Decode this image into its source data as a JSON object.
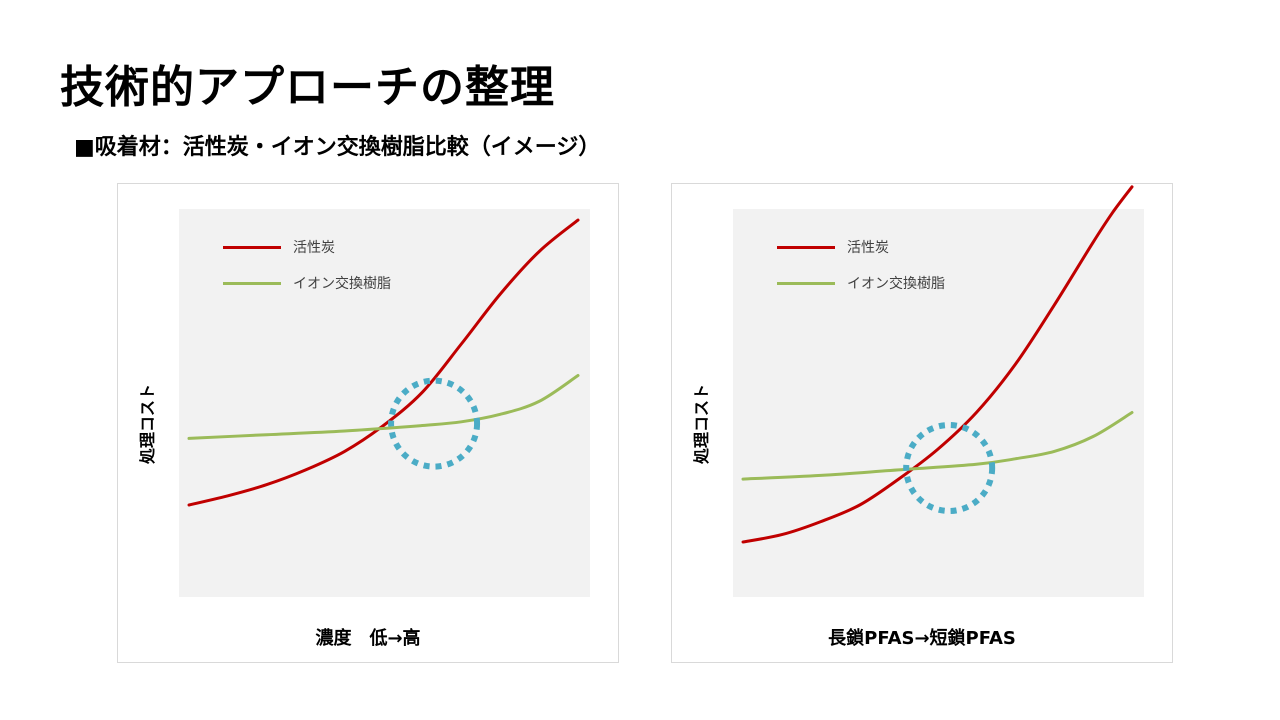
{
  "page": {
    "title": "技術的アプローチの整理",
    "subtitle": "■吸着材：活性炭・イオン交換樹脂比較（イメージ）"
  },
  "colors": {
    "activated_carbon": "#c00000",
    "ion_exchange": "#9bbb59",
    "highlight": "#4bacc6",
    "plot_bg": "#f2f2f2"
  },
  "chart_data": [
    {
      "type": "line",
      "title": "",
      "xlabel": "濃度　低→高",
      "ylabel": "処理コスト",
      "xlim": [
        0,
        100
      ],
      "ylim": [
        0,
        100
      ],
      "grid": false,
      "legend_position": "top-left",
      "series": [
        {
          "name": "活性炭",
          "color": "#c00000",
          "x": [
            0,
            10,
            20,
            30,
            40,
            50,
            60,
            70,
            80,
            90,
            100
          ],
          "y": [
            20,
            22.5,
            25.5,
            29.5,
            34.5,
            41.5,
            50.5,
            63.5,
            77,
            88.5,
            97
          ]
        },
        {
          "name": "イオン交換樹脂",
          "color": "#9bbb59",
          "x": [
            0,
            20,
            40,
            60,
            70,
            80,
            90,
            100
          ],
          "y": [
            38,
            39,
            40,
            41.5,
            42.5,
            44.5,
            48,
            55
          ]
        }
      ],
      "annotations": [
        {
          "type": "dashed-circle",
          "label": "crossover",
          "x": 63,
          "y": 42,
          "color": "#4bacc6"
        }
      ]
    },
    {
      "type": "line",
      "title": "",
      "xlabel": "長鎖PFAS→短鎖PFAS",
      "ylabel": "処理コスト",
      "xlim": [
        0,
        100
      ],
      "ylim": [
        0,
        100
      ],
      "grid": false,
      "legend_position": "top-left",
      "series": [
        {
          "name": "活性炭",
          "color": "#c00000",
          "x": [
            0,
            10,
            20,
            30,
            40,
            50,
            60,
            70,
            80,
            90,
            95,
            100
          ],
          "y": [
            10,
            12,
            15.5,
            20,
            27,
            35,
            45,
            58,
            74,
            91,
            99,
            106
          ]
        },
        {
          "name": "イオン交換樹脂",
          "color": "#9bbb59",
          "x": [
            0,
            20,
            40,
            60,
            70,
            80,
            90,
            100
          ],
          "y": [
            27,
            28,
            29.5,
            31,
            32.5,
            34.5,
            38.5,
            45
          ]
        }
      ],
      "annotations": [
        {
          "type": "dashed-circle",
          "label": "crossover",
          "x": 53,
          "y": 30,
          "color": "#4bacc6"
        }
      ]
    }
  ]
}
